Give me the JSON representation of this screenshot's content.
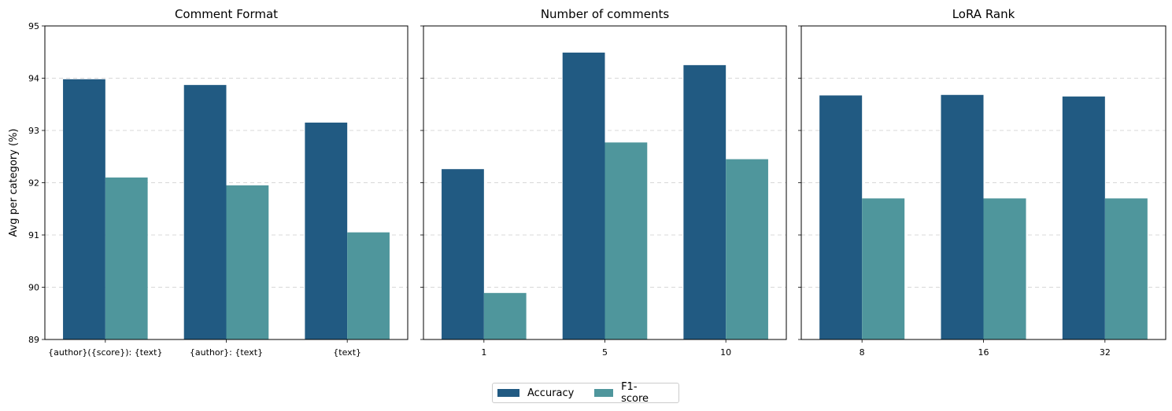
{
  "colors": {
    "accuracy": "#215a82",
    "f1": "#4f969c",
    "grid": "#cccccc"
  },
  "legend": [
    {
      "name": "Accuracy",
      "color": "#215a82"
    },
    {
      "name": "F1-score",
      "color": "#4f969c"
    }
  ],
  "chart_data": [
    {
      "type": "bar",
      "title": "Comment Format",
      "ylabel": "Avg per category (%)",
      "ylim": [
        89,
        95
      ],
      "yticks": [
        "89",
        "90",
        "91",
        "92",
        "93",
        "94",
        "95"
      ],
      "categories": [
        "{author}({score}): {text}",
        "{author}: {text}",
        "{text}"
      ],
      "series": [
        {
          "name": "Accuracy",
          "values": [
            93.98,
            93.87,
            93.15
          ]
        },
        {
          "name": "F1-score",
          "values": [
            92.1,
            91.95,
            91.05
          ]
        }
      ],
      "grid": "y-dashed"
    },
    {
      "type": "bar",
      "title": "Number of comments",
      "ylim": [
        89,
        95
      ],
      "categories": [
        "1",
        "5",
        "10"
      ],
      "series": [
        {
          "name": "Accuracy",
          "values": [
            92.26,
            94.49,
            94.25
          ]
        },
        {
          "name": "F1-score",
          "values": [
            89.89,
            92.77,
            92.45
          ]
        }
      ],
      "grid": "y-dashed"
    },
    {
      "type": "bar",
      "title": "LoRA Rank",
      "ylim": [
        89,
        95
      ],
      "categories": [
        "8",
        "16",
        "32"
      ],
      "series": [
        {
          "name": "Accuracy",
          "values": [
            93.67,
            93.68,
            93.65
          ]
        },
        {
          "name": "F1-score",
          "values": [
            91.7,
            91.7,
            91.7
          ]
        }
      ],
      "grid": "y-dashed"
    }
  ]
}
